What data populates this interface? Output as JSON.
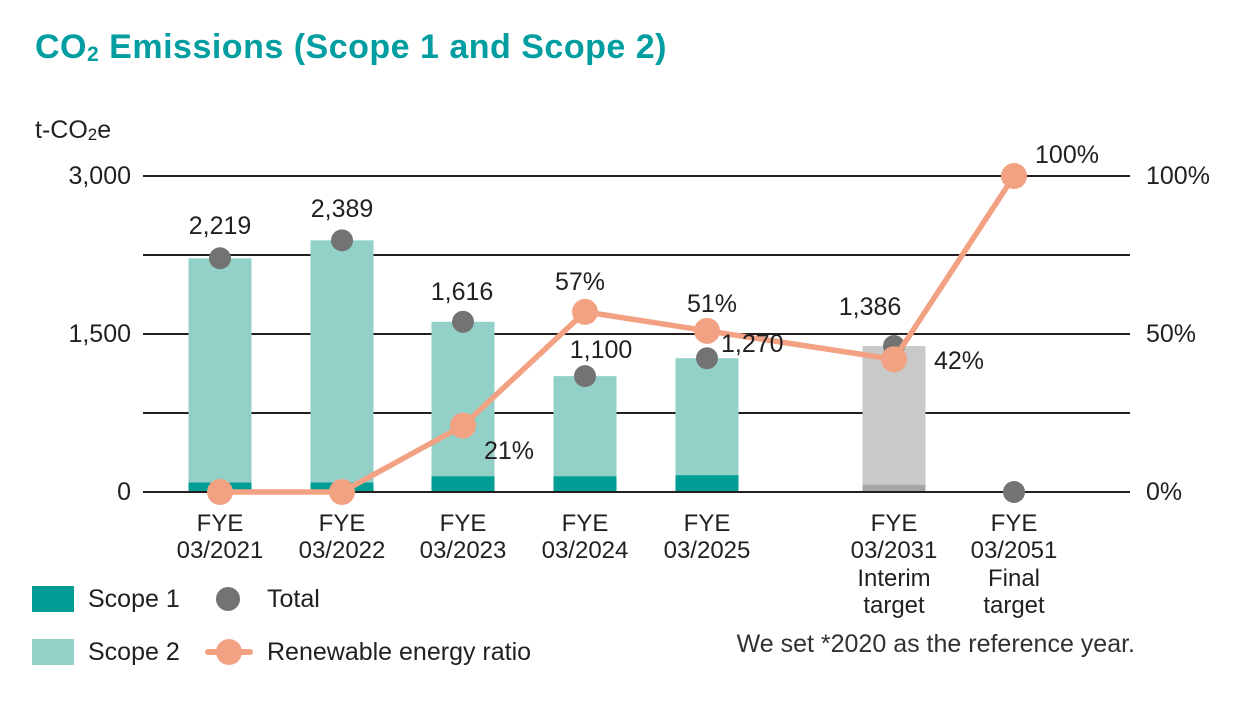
{
  "palette": {
    "title_teal": "#009ea0",
    "scope1": "#009d94",
    "scope2": "#92d0c8",
    "renewable_orange": "#f2a283",
    "total_gray": "#737373",
    "target_bar": "#c9c9c9",
    "target_bar_dark": "#a6a6a6",
    "axis_black": "#231f20"
  },
  "chart_data": {
    "type": "bar+line combo (stacked bars, right-axis line)",
    "title": "CO₂ Emissions (Scope 1 and Scope 2)",
    "title_parts": {
      "pre": "CO",
      "sub": "2",
      "post": " Emissions (Scope 1 and Scope 2)"
    },
    "unit_parts": {
      "pre": "t-CO",
      "sub": "2",
      "post": "e"
    },
    "y_left": {
      "label": "t-CO₂e",
      "min": 0,
      "max": 3000,
      "gridline_step": 750,
      "ticks": [
        {
          "value": 0,
          "label": "0"
        },
        {
          "value": 1500,
          "label": "1,500"
        },
        {
          "value": 3000,
          "label": "3,000"
        }
      ]
    },
    "y_right": {
      "min": 0,
      "max": 100,
      "ticks": [
        {
          "value": 0,
          "label": "0%"
        },
        {
          "value": 50,
          "label": "50%"
        },
        {
          "value": 100,
          "label": "100%"
        }
      ]
    },
    "categories": [
      [
        "FYE",
        "03/2021"
      ],
      [
        "FYE",
        "03/2022"
      ],
      [
        "FYE",
        "03/2023"
      ],
      [
        "FYE",
        "03/2024"
      ],
      [
        "FYE",
        "03/2025"
      ],
      [
        "FYE",
        "03/2031",
        "Interim",
        "target"
      ],
      [
        "FYE",
        "03/2051",
        "Final",
        "target"
      ]
    ],
    "bar_styles": [
      "teal",
      "teal",
      "teal",
      "teal",
      "teal",
      "gray",
      "none"
    ],
    "totals": [
      2219,
      2389,
      1616,
      1100,
      1270,
      1386,
      0
    ],
    "total_labels": [
      "2,219",
      "2,389",
      "1,616",
      "1,100",
      "1,270",
      "1,386",
      ""
    ],
    "scope1_estimated": [
      90,
      90,
      150,
      150,
      160,
      70,
      0
    ],
    "renewable_pct": [
      0,
      0,
      21,
      57,
      51,
      42,
      100
    ],
    "renewable_labels": [
      "",
      "",
      "21%",
      "57%",
      "51%",
      "42%",
      "100%"
    ],
    "legend": [
      {
        "label": "Scope 1"
      },
      {
        "label": "Scope 2"
      },
      {
        "label": "Total"
      },
      {
        "label": "Renewable energy ratio"
      }
    ],
    "note": "We set *2020 as the reference year."
  }
}
